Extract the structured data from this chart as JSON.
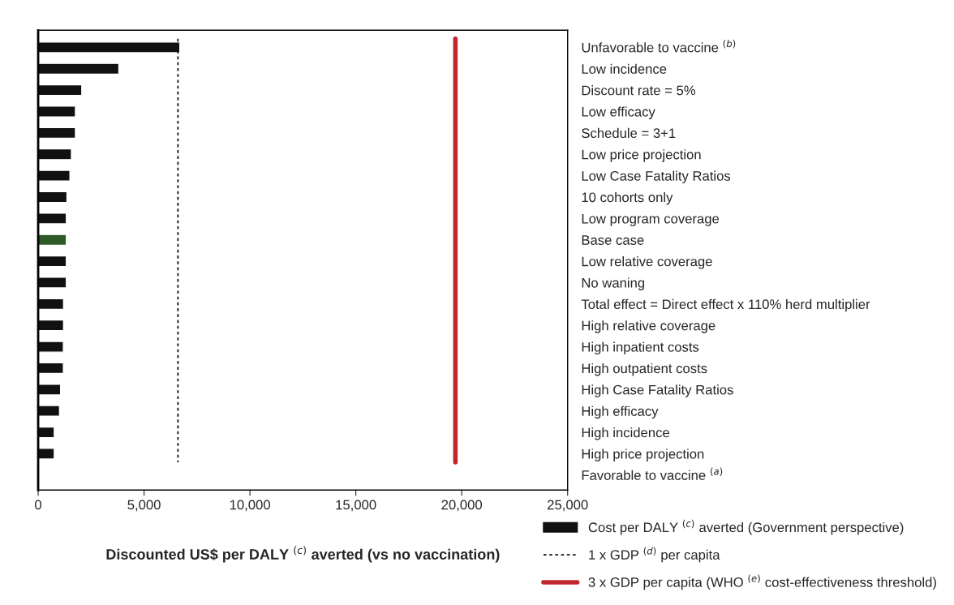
{
  "chart_data": {
    "type": "bar",
    "orientation": "horizontal",
    "xlabel": "Discounted US$ per DALY $^{(c)}$ averted (vs no vaccination)",
    "categories": [
      "Unfavorable to vaccine $^{(b)}$",
      "Low incidence",
      "Discount rate = 5%",
      "Low efficacy",
      "Schedule = 3+1",
      "Low price projection",
      "Low Case Fatality Ratios",
      "10 cohorts only",
      "Low program coverage",
      "Base case",
      "Low relative coverage",
      "No waning",
      "Total effect = Direct effect x 110% herd multiplier",
      "High relative coverage",
      "High inpatient costs",
      "High outpatient costs",
      "High Case Fatality Ratios",
      "High efficacy",
      "High incidence",
      "High price projection",
      "Favorable to vaccine $^{(a)}$"
    ],
    "series": [
      {
        "name": "Cost per DALY $^{(c)}$ averted (Government perspective)",
        "color": "#111111",
        "colors": [
          "#111111",
          "#111111",
          "#111111",
          "#111111",
          "#111111",
          "#111111",
          "#111111",
          "#111111",
          "#111111",
          "#2d5a27",
          "#111111",
          "#111111",
          "#111111",
          "#111111",
          "#111111",
          "#111111",
          "#111111",
          "#111111",
          "#111111",
          "#111111",
          "#111111"
        ],
        "values": [
          6690,
          3810,
          2060,
          1760,
          1760,
          1570,
          1500,
          1360,
          1330,
          1330,
          1330,
          1330,
          1200,
          1200,
          1190,
          1190,
          1060,
          1010,
          760,
          760,
          null
        ]
      }
    ],
    "xlim": [
      0,
      25000
    ],
    "xticks": [
      0,
      {
        "value": 5000,
        "label": "5,000"
      },
      {
        "value": 10000,
        "label": "10,000"
      },
      {
        "value": 15000,
        "label": "15,000"
      },
      {
        "value": 20000,
        "label": "20,000"
      },
      {
        "value": 25000,
        "label": "25,000"
      }
    ],
    "ref_lines": [
      {
        "axis": "x",
        "value": 6600,
        "label": "1 x GDP $^{(d)}$ per capita",
        "color": "#111111",
        "line_style": "dashed"
      },
      {
        "axis": "x",
        "value": 19700,
        "label": "3 x GDP per capita (WHO $^{(e)}$ cost-effectiveness threshold)",
        "color": "#c0282d",
        "line_style": "solid"
      }
    ],
    "legend": "bottom right",
    "grid": false
  }
}
